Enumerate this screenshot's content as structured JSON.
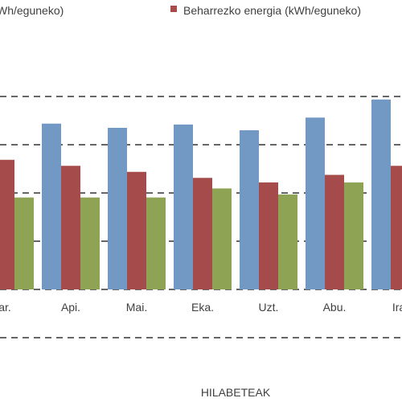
{
  "chart_data": {
    "type": "bar",
    "categories": [
      "ar.",
      "Api.",
      "Mai.",
      "Eka.",
      "Uzt.",
      "Abu.",
      "Ira."
    ],
    "series": [
      {
        "name": "Wh/eguneko)",
        "color": "#7199c4",
        "values": [
          null,
          5.5,
          5.36,
          5.47,
          5.28,
          5.7,
          6.3
        ]
      },
      {
        "name": "Beharrezko energia (kWh/eguneko)",
        "color": "#a64b4b",
        "values": [
          4.3,
          4.1,
          3.9,
          3.7,
          3.55,
          3.8,
          4.1
        ]
      },
      {
        "name": "",
        "color": "#8ea354",
        "values": [
          3.05,
          3.05,
          3.05,
          3.35,
          3.15,
          3.55,
          null
        ]
      }
    ],
    "ylim": [
      0,
      6.6
    ],
    "grid": true,
    "gridlines": [
      0,
      1.6,
      3.2,
      4.8,
      6.4
    ],
    "xlabel": "HILABETEAK",
    "legend_placement": "top"
  }
}
